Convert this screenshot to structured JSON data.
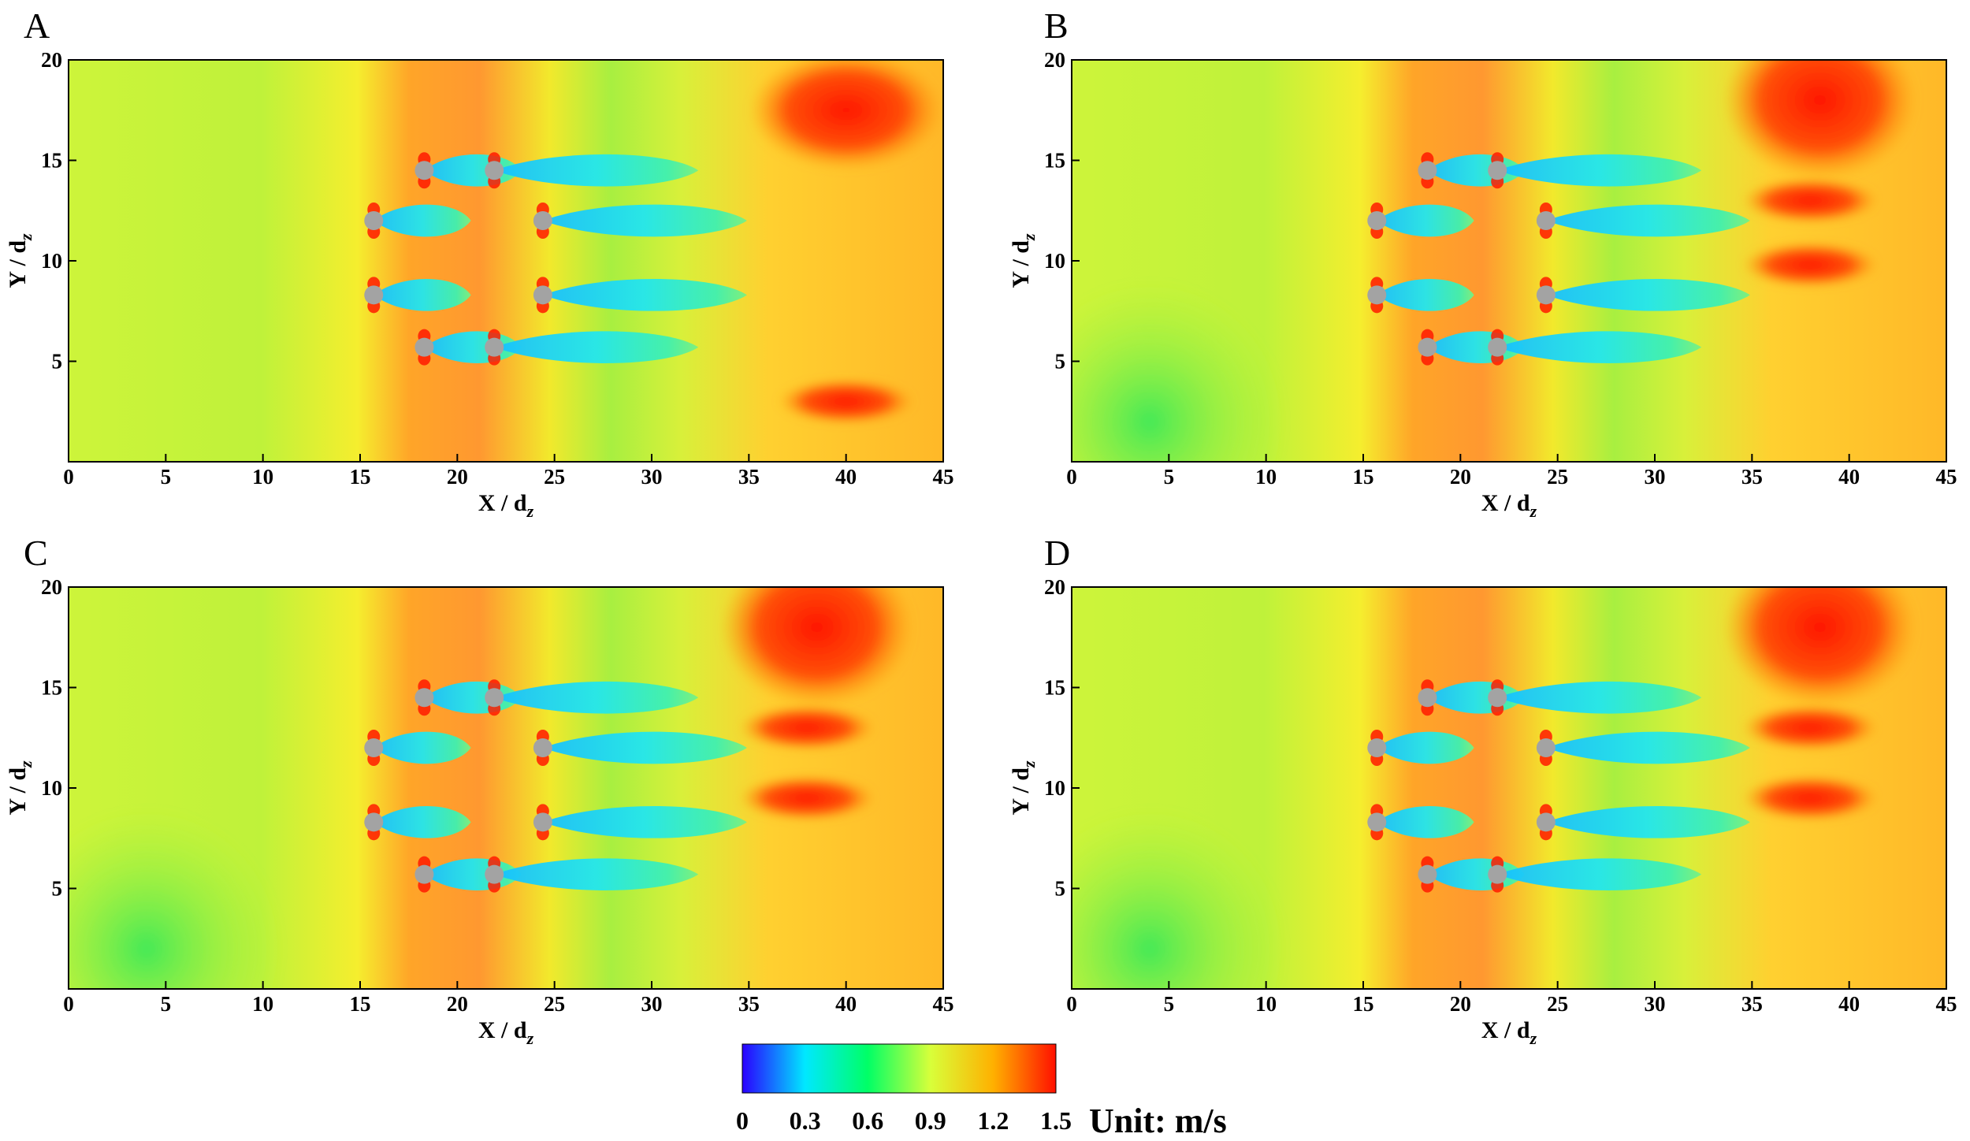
{
  "chart_data": {
    "type": "heatmap",
    "description_unit": "Unit: m/s",
    "colorbar": {
      "min": 0,
      "max": 1.5,
      "ticks": [
        "0",
        "0.3",
        "0.6",
        "0.9",
        "1.2",
        "1.5"
      ],
      "unit_label": "Unit: m/s",
      "colors": [
        "#2a00ff",
        "#00e8ff",
        "#00ff66",
        "#d8ff3a",
        "#ffb000",
        "#ff1000"
      ]
    },
    "panels": [
      {
        "label": "A",
        "xlabel": "X / d",
        "xlabel_sub": "z",
        "ylabel": "Y / d",
        "ylabel_sub": "z",
        "xlim": [
          0,
          45
        ],
        "ylim": [
          0,
          20
        ],
        "xticks": [
          "0",
          "5",
          "10",
          "15",
          "20",
          "25",
          "30",
          "35",
          "40",
          "45"
        ],
        "yticks": [
          "5",
          "10",
          "15",
          "20"
        ],
        "turbines": [
          [
            15.7,
            12
          ],
          [
            15.7,
            8.3
          ],
          [
            18.3,
            14.5
          ],
          [
            18.3,
            5.7
          ],
          [
            21.9,
            14.5
          ],
          [
            21.9,
            5.7
          ],
          [
            24.4,
            12
          ],
          [
            24.4,
            8.3
          ]
        ],
        "high_speed_regions": [
          [
            40,
            17.5
          ],
          [
            40,
            3
          ]
        ],
        "wake_max_velocity": 0.5
      },
      {
        "label": "B",
        "xlabel": "X / d",
        "xlabel_sub": "z",
        "ylabel": "Y / d",
        "ylabel_sub": "z",
        "xlim": [
          0,
          45
        ],
        "ylim": [
          0,
          20
        ],
        "xticks": [
          "0",
          "5",
          "10",
          "15",
          "20",
          "25",
          "30",
          "35",
          "40",
          "45"
        ],
        "yticks": [
          "5",
          "10",
          "15",
          "20"
        ],
        "turbines": [
          [
            15.7,
            12
          ],
          [
            15.7,
            8.3
          ],
          [
            18.3,
            14.5
          ],
          [
            18.3,
            5.7
          ],
          [
            21.9,
            14.5
          ],
          [
            21.9,
            5.7
          ],
          [
            24.4,
            12
          ],
          [
            24.4,
            8.3
          ]
        ],
        "high_speed_regions": [
          [
            38.5,
            18
          ],
          [
            38,
            13
          ],
          [
            38,
            9.8
          ]
        ],
        "wake_max_velocity": 0.5
      },
      {
        "label": "C",
        "xlabel": "X / d",
        "xlabel_sub": "z",
        "ylabel": "Y / d",
        "ylabel_sub": "z",
        "xlim": [
          0,
          45
        ],
        "ylim": [
          0,
          20
        ],
        "xticks": [
          "0",
          "5",
          "10",
          "15",
          "20",
          "25",
          "30",
          "35",
          "40",
          "45"
        ],
        "yticks": [
          "5",
          "10",
          "15",
          "20"
        ],
        "turbines": [
          [
            15.7,
            12
          ],
          [
            15.7,
            8.3
          ],
          [
            18.3,
            14.5
          ],
          [
            18.3,
            5.7
          ],
          [
            21.9,
            14.5
          ],
          [
            21.9,
            5.7
          ],
          [
            24.4,
            12
          ],
          [
            24.4,
            8.3
          ]
        ],
        "high_speed_regions": [
          [
            38.5,
            18
          ],
          [
            38,
            13
          ],
          [
            38,
            9.5
          ]
        ],
        "wake_max_velocity": 0.5
      },
      {
        "label": "D",
        "xlabel": "X / d",
        "xlabel_sub": "z",
        "ylabel": "Y / d",
        "ylabel_sub": "z",
        "xlim": [
          0,
          45
        ],
        "ylim": [
          0,
          20
        ],
        "xticks": [
          "0",
          "5",
          "10",
          "15",
          "20",
          "25",
          "30",
          "35",
          "40",
          "45"
        ],
        "yticks": [
          "5",
          "10",
          "15",
          "20"
        ],
        "turbines": [
          [
            15.7,
            12
          ],
          [
            15.7,
            8.3
          ],
          [
            18.3,
            14.5
          ],
          [
            18.3,
            5.7
          ],
          [
            21.9,
            14.5
          ],
          [
            21.9,
            5.7
          ],
          [
            24.4,
            12
          ],
          [
            24.4,
            8.3
          ]
        ],
        "high_speed_regions": [
          [
            38.5,
            18
          ],
          [
            38,
            13
          ],
          [
            38,
            9.5
          ]
        ],
        "wake_max_velocity": 0.5
      }
    ]
  }
}
